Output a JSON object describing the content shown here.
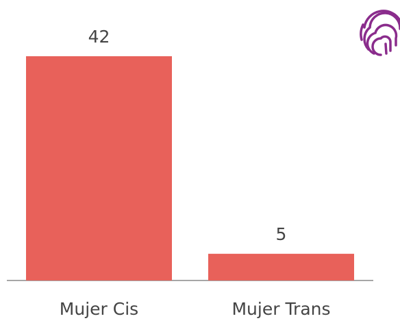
{
  "chart_data": {
    "type": "bar",
    "categories": [
      "Mujer Cis",
      "Mujer Trans"
    ],
    "values": [
      42,
      5
    ],
    "color": "#e8615a"
  }
}
